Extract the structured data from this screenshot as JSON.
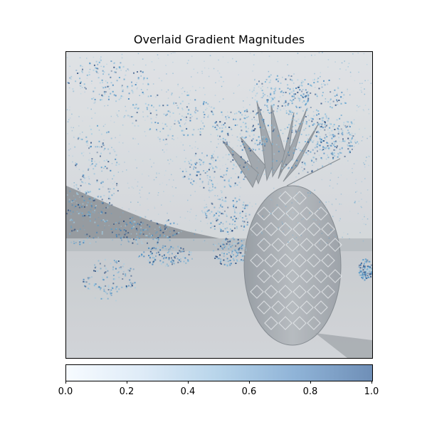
{
  "chart_data": [
    {
      "type": "heatmap",
      "title": "Overlaid Gradient Magnitudes",
      "xlabel": "",
      "ylabel": "",
      "background_image": "pineapple-on-beach-grayscale",
      "colormap": "Blues",
      "colors": {
        "low": "#f7fbff",
        "mid": "#9ecae1",
        "high": "#08306b",
        "image_sky": "#d9dcdf",
        "image_sand": "#c5c7ca",
        "image_pineapple": "#9da1a6"
      }
    },
    {
      "type": "colorbar",
      "orientation": "horizontal",
      "range": [
        0.0,
        1.0
      ],
      "ticks": [
        "0.0",
        "0.2",
        "0.4",
        "0.6",
        "0.8",
        "1.0"
      ],
      "tick_values": [
        0.0,
        0.2,
        0.4,
        0.6,
        0.8,
        1.0
      ]
    }
  ]
}
